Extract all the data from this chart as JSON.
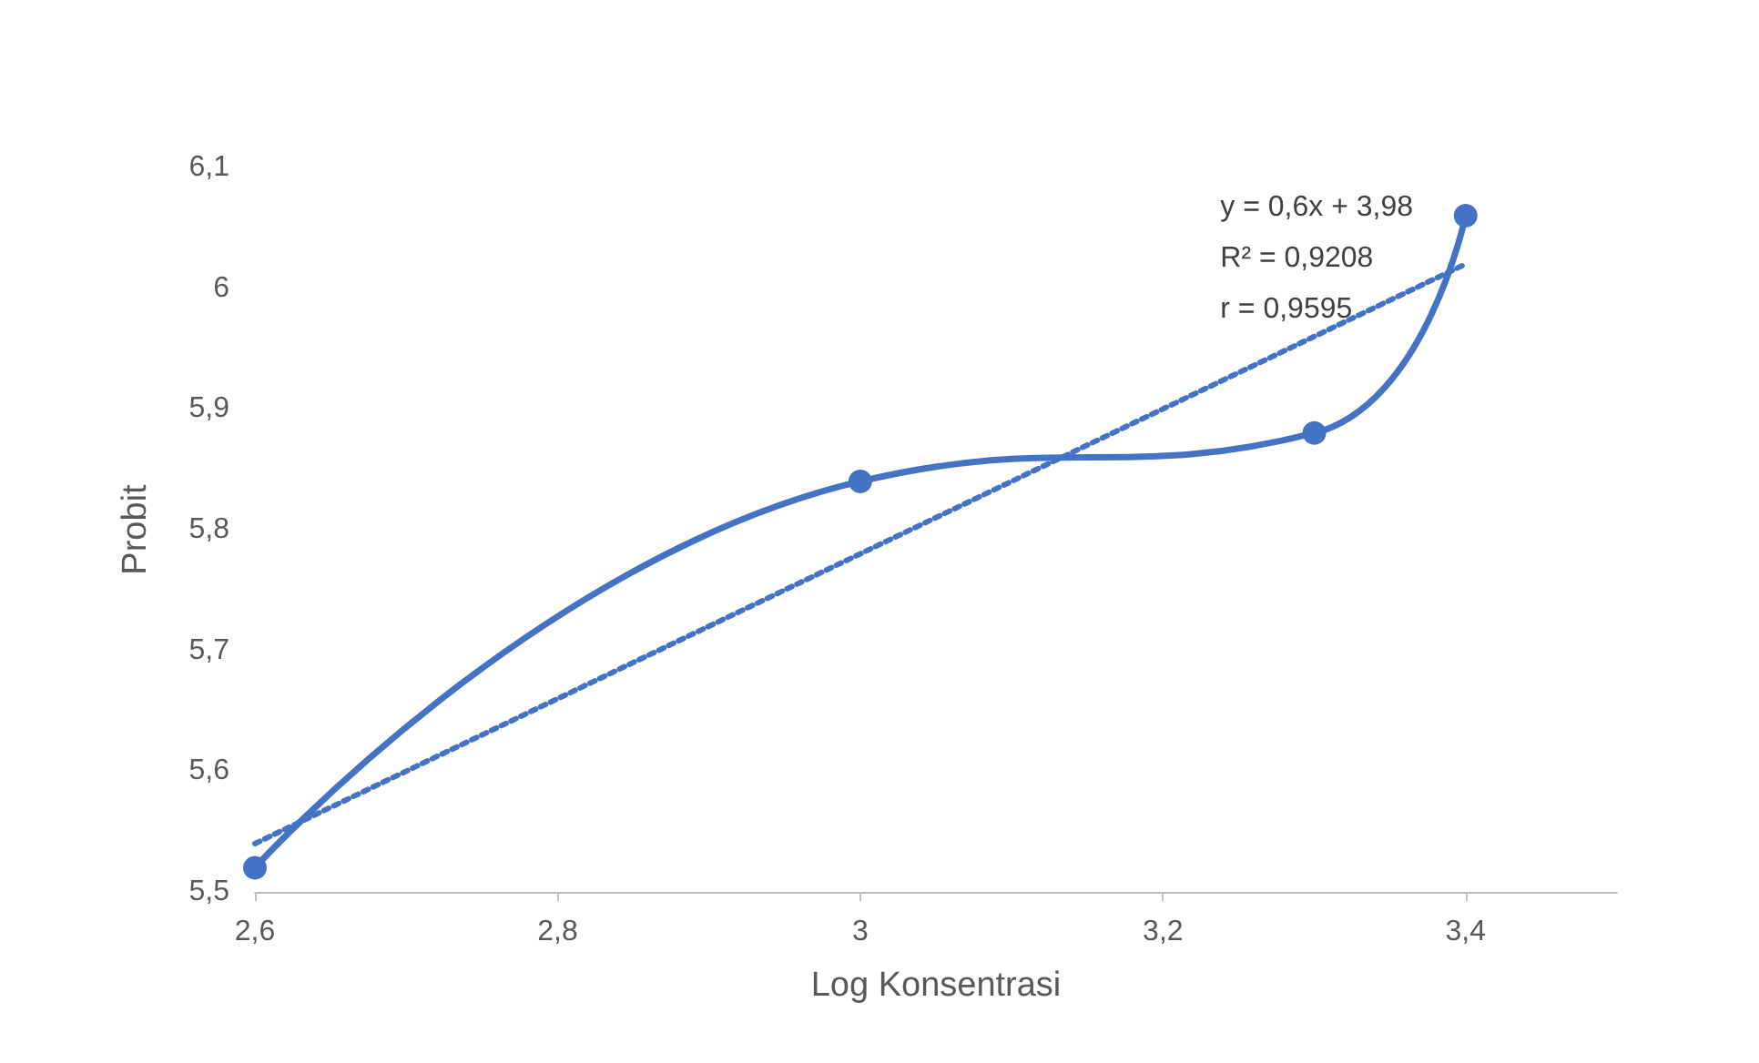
{
  "chart_data": {
    "type": "line",
    "xlabel": "Log Konsentrasi",
    "ylabel": "Probit",
    "xlim": [
      2.6,
      3.5
    ],
    "xticks": [
      {
        "value": 2.6,
        "label": "2,6"
      },
      {
        "value": 2.8,
        "label": "2,8"
      },
      {
        "value": 3,
        "label": "3"
      },
      {
        "value": 3.2,
        "label": "3,2"
      },
      {
        "value": 3.4,
        "label": "3,4"
      }
    ],
    "ylim": [
      5.5,
      6.1
    ],
    "yticks": [
      {
        "value": 5.5,
        "label": "5,5"
      },
      {
        "value": 5.6,
        "label": "5,6"
      },
      {
        "value": 5.7,
        "label": "5,7"
      },
      {
        "value": 5.8,
        "label": "5,8"
      },
      {
        "value": 5.9,
        "label": "5,9"
      },
      {
        "value": 6,
        "label": "6"
      },
      {
        "value": 6.1,
        "label": "6,1"
      }
    ],
    "series": [
      {
        "color": "#4472c4",
        "x": [
          2.6,
          3,
          3.3,
          3.4
        ],
        "values": [
          5.52,
          5.84,
          5.88,
          6.06
        ],
        "marker": "circle",
        "line_style": "solid"
      },
      {
        "color": "#4472c4",
        "x": [
          2.6,
          3.4
        ],
        "values": [
          5.54,
          6.02
        ],
        "marker": "none",
        "line_style": "dotted"
      }
    ],
    "annotations": [
      "y = 0,6x + 3,98",
      "R² = 0,9208",
      "r = 0,9595"
    ],
    "grid": false
  }
}
